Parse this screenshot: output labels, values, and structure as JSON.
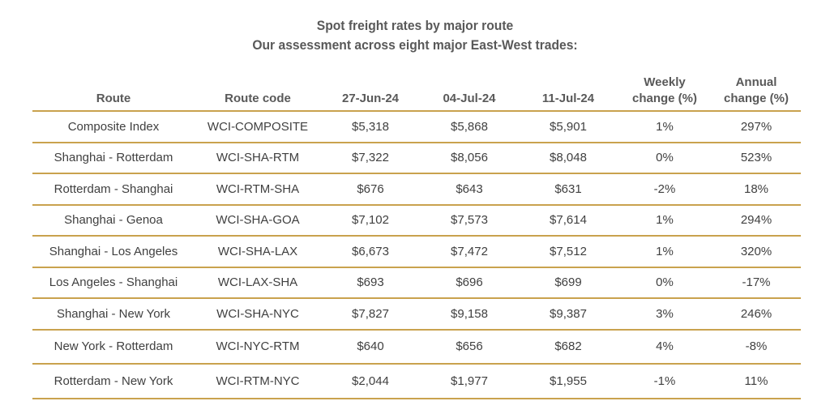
{
  "title": {
    "line1": "Spot freight rates by major route",
    "line2": "Our assessment across eight major East-West trades:"
  },
  "table": {
    "headers": {
      "route": "Route",
      "code": "Route code",
      "d1": "27-Jun-24",
      "d2": "04-Jul-24",
      "d3": "11-Jul-24",
      "weekly_1": "Weekly",
      "weekly_2": "change (%)",
      "annual_1": "Annual",
      "annual_2": "change (%)"
    },
    "rows": [
      {
        "route": "Composite Index",
        "code": "WCI-COMPOSITE",
        "d1": "$5,318",
        "d2": "$5,868",
        "d3": "$5,901",
        "weekly": "1%",
        "annual": "297%"
      },
      {
        "route": "Shanghai - Rotterdam",
        "code": "WCI-SHA-RTM",
        "d1": "$7,322",
        "d2": "$8,056",
        "d3": "$8,048",
        "weekly": "0%",
        "annual": "523%"
      },
      {
        "route": "Rotterdam - Shanghai",
        "code": "WCI-RTM-SHA",
        "d1": "$676",
        "d2": "$643",
        "d3": "$631",
        "weekly": "-2%",
        "annual": "18%"
      },
      {
        "route": "Shanghai - Genoa",
        "code": "WCI-SHA-GOA",
        "d1": "$7,102",
        "d2": "$7,573",
        "d3": "$7,614",
        "weekly": "1%",
        "annual": "294%"
      },
      {
        "route": "Shanghai - Los Angeles",
        "code": "WCI-SHA-LAX",
        "d1": "$6,673",
        "d2": "$7,472",
        "d3": "$7,512",
        "weekly": "1%",
        "annual": "320%"
      },
      {
        "route": "Los Angeles - Shanghai",
        "code": "WCI-LAX-SHA",
        "d1": "$693",
        "d2": "$696",
        "d3": "$699",
        "weekly": "0%",
        "annual": "-17%"
      },
      {
        "route": "Shanghai - New York",
        "code": "WCI-SHA-NYC",
        "d1": "$7,827",
        "d2": "$9,158",
        "d3": "$9,387",
        "weekly": "3%",
        "annual": "246%"
      },
      {
        "route": "New York - Rotterdam",
        "code": "WCI-NYC-RTM",
        "d1": "$640",
        "d2": "$656",
        "d3": "$682",
        "weekly": "4%",
        "annual": "-8%"
      },
      {
        "route": "Rotterdam - New York",
        "code": "WCI-RTM-NYC",
        "d1": "$2,044",
        "d2": "$1,977",
        "d3": "$1,955",
        "weekly": "-1%",
        "annual": "11%"
      }
    ]
  },
  "colors": {
    "rule": "#c9a24e",
    "header_text": "#595959",
    "body_text": "#404040"
  }
}
